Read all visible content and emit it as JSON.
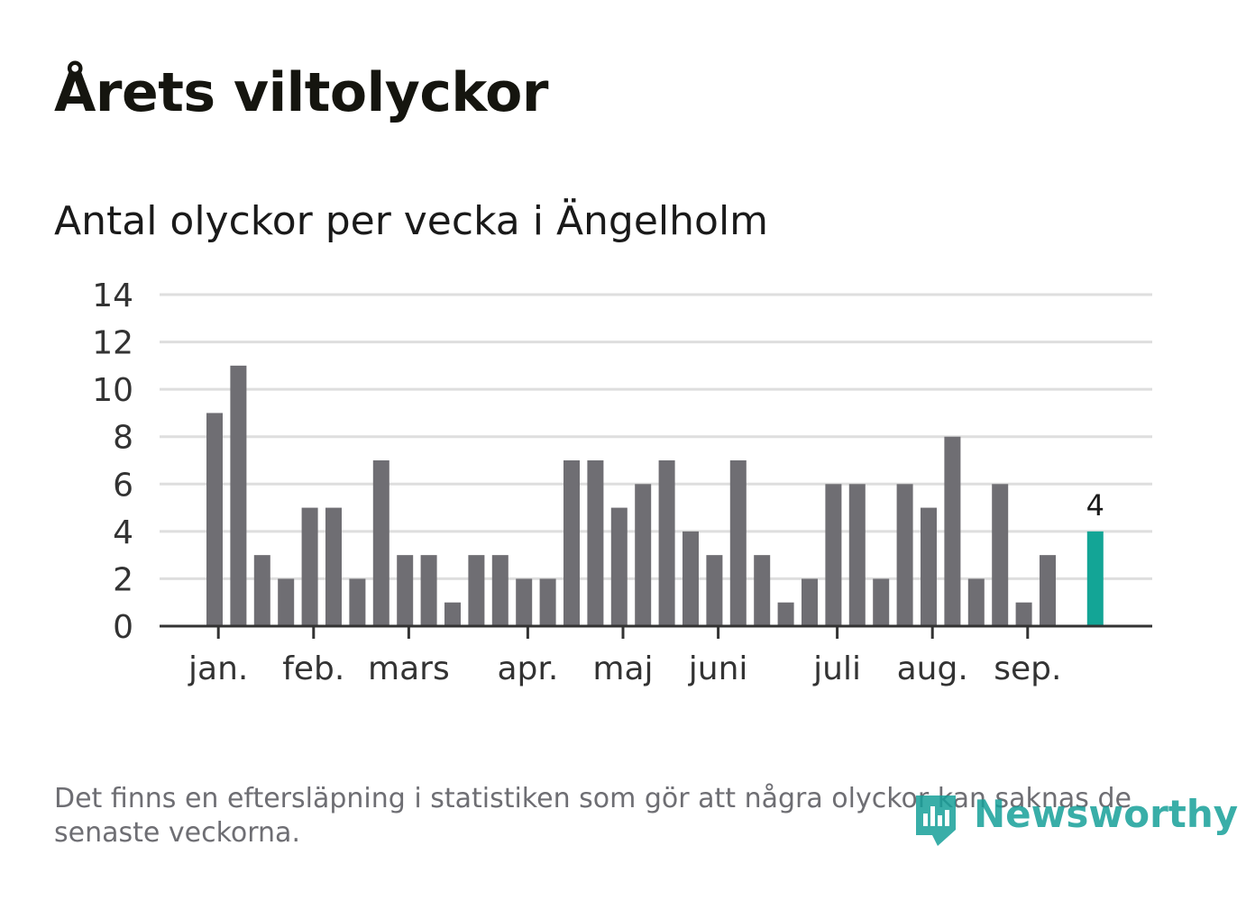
{
  "title": "Årets viltolyckor",
  "subtitle": "Antal olyckor per vecka i Ängelholm",
  "footnote": "Det finns en eftersläpning i statistiken som gör att några olyckor kan saknas de senaste veckorna.",
  "logo": {
    "text": "Newsworthy",
    "icon": "newsworthy-logo-icon",
    "color": "#17a09a"
  },
  "colors": {
    "bar": "#6f6e73",
    "highlight": "#13a596",
    "grid": "#dedede",
    "axis": "#333333"
  },
  "chart_data": {
    "type": "bar",
    "title": "Antal olyckor per vecka i Ängelholm",
    "xlabel": "",
    "ylabel": "",
    "ylim": [
      0,
      14
    ],
    "yticks": [
      "0",
      "2",
      "4",
      "6",
      "8",
      "10",
      "12",
      "14"
    ],
    "grid": true,
    "values": [
      9,
      11,
      3,
      2,
      5,
      5,
      2,
      7,
      3,
      3,
      1,
      3,
      3,
      2,
      2,
      7,
      7,
      5,
      6,
      7,
      4,
      3,
      7,
      3,
      1,
      2,
      6,
      6,
      2,
      6,
      5,
      8,
      2,
      6,
      1,
      3,
      null,
      4
    ],
    "highlight_index": 37,
    "highlight_label": "4",
    "month_labels": [
      {
        "label": "jan.",
        "week": 0.5
      },
      {
        "label": "feb.",
        "week": 4.5
      },
      {
        "label": "mars",
        "week": 8.5
      },
      {
        "label": "apr.",
        "week": 13.5
      },
      {
        "label": "maj",
        "week": 17.5
      },
      {
        "label": "juni",
        "week": 21.5
      },
      {
        "label": "juli",
        "week": 26.5
      },
      {
        "label": "aug.",
        "week": 30.5
      },
      {
        "label": "sep.",
        "week": 34.5
      }
    ]
  }
}
